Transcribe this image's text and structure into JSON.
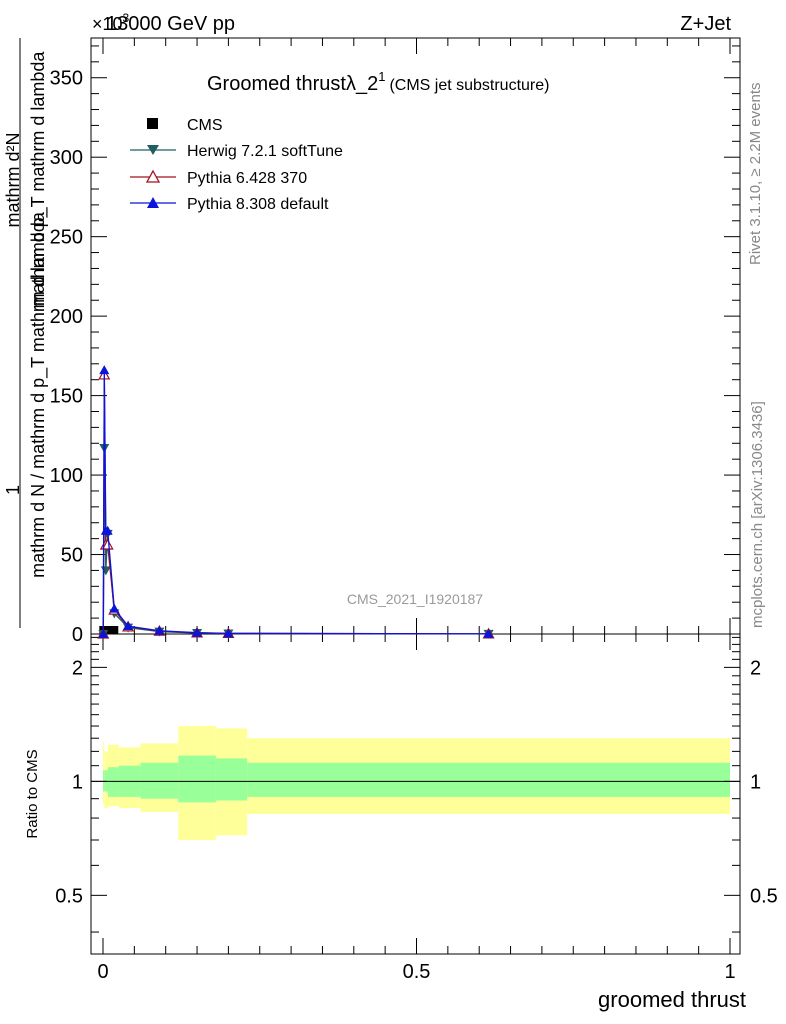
{
  "header": {
    "energy_label": "13000 GeV pp",
    "process_label": "Z+Jet",
    "exponent_label": "×10",
    "exponent_power": "3"
  },
  "side_labels": {
    "rivet": "Rivet 3.1.10, ≥ 2.2M events",
    "mcplots": "mcplots.cern.ch [arXiv:1306.3436]"
  },
  "watermark": "CMS_2021_I1920187",
  "colors": {
    "cms": "#000000",
    "herwig": "#1f5f5f",
    "pythia6": "#a0141e",
    "pythia8": "#0a14dc",
    "band_inner": "#99ff99",
    "band_outer": "#ffff99"
  },
  "chart_data": [
    {
      "type": "line",
      "title": "Groomed thrust",
      "title_symbol": "λ_2",
      "title_superscript": "1",
      "subtitle": "(CMS jet substructure)",
      "ylabel": "mathrm d N / mathrm d p_T mathrm d lambda   1 / mathrm d N / mathrm d p_T mathrm d lambda",
      "ylabel_lines": [
        "1",
        "mathrm d N / mathrm d p_T mathrm d lambda",
        "mathrm d²N",
        "mathrm d p_T mathrm d lambda"
      ],
      "xlim": [
        -0.01,
        1.0
      ],
      "ylim": [
        0,
        375
      ],
      "y_multiplier": "×10³",
      "y_ticks": [
        0,
        50,
        100,
        150,
        200,
        250,
        300,
        350
      ],
      "legend_position": "top-left",
      "series": [
        {
          "name": "CMS",
          "marker": "square",
          "x": [
            0.0005,
            0.002,
            0.0045,
            0.0075,
            0.012,
            0.018
          ],
          "y": [
            0,
            0,
            0,
            0,
            0,
            0
          ]
        },
        {
          "name": "Herwig 7.2.1 softTune",
          "marker": "triangle-down",
          "x": [
            0.0005,
            0.002,
            0.0045,
            0.0075,
            0.018,
            0.04,
            0.09,
            0.15,
            0.2,
            0.615
          ],
          "y": [
            0.0,
            117,
            40,
            63,
            13,
            4,
            1.5,
            0.6,
            0.3,
            0.05
          ]
        },
        {
          "name": "Pythia 6.428 370",
          "marker": "triangle-up-open",
          "x": [
            0.0005,
            0.002,
            0.0045,
            0.0075,
            0.018,
            0.04,
            0.09,
            0.15,
            0.2,
            0.615
          ],
          "y": [
            0.0,
            163,
            56,
            56,
            15,
            4.5,
            1.8,
            0.7,
            0.35,
            0.06
          ]
        },
        {
          "name": "Pythia 8.308 default",
          "marker": "triangle-up",
          "x": [
            0.0005,
            0.002,
            0.0045,
            0.0075,
            0.018,
            0.04,
            0.09,
            0.15,
            0.2,
            0.615
          ],
          "y": [
            0.0,
            166,
            65,
            65,
            16,
            5,
            2,
            0.8,
            0.4,
            0.06
          ]
        }
      ]
    },
    {
      "type": "area",
      "ylabel": "Ratio to CMS",
      "xlabel": "groomed thrust",
      "xlim": [
        -0.01,
        1.0
      ],
      "ylim": [
        0.35,
        2.45
      ],
      "y_scale": "log",
      "x_ticks": [
        0,
        0.5,
        1
      ],
      "x_tick_labels": [
        "0",
        "0.5",
        "1"
      ],
      "y_ticks": [
        0.5,
        1,
        2
      ],
      "y_tick_labels": [
        "0.5",
        "1",
        "2"
      ],
      "reference_line": 1,
      "bins": [
        {
          "lo": 0.0,
          "hi": 0.002,
          "inner": [
            0.94,
            1.07
          ],
          "outer": [
            0.87,
            1.27
          ]
        },
        {
          "lo": 0.002,
          "hi": 0.008,
          "inner": [
            0.94,
            1.07
          ],
          "outer": [
            0.85,
            1.2
          ]
        },
        {
          "lo": 0.008,
          "hi": 0.025,
          "inner": [
            0.91,
            1.09
          ],
          "outer": [
            0.86,
            1.25
          ]
        },
        {
          "lo": 0.025,
          "hi": 0.06,
          "inner": [
            0.91,
            1.1
          ],
          "outer": [
            0.85,
            1.23
          ]
        },
        {
          "lo": 0.06,
          "hi": 0.12,
          "inner": [
            0.9,
            1.12
          ],
          "outer": [
            0.83,
            1.26
          ]
        },
        {
          "lo": 0.12,
          "hi": 0.18,
          "inner": [
            0.88,
            1.17
          ],
          "outer": [
            0.7,
            1.4
          ]
        },
        {
          "lo": 0.18,
          "hi": 0.23,
          "inner": [
            0.89,
            1.15
          ],
          "outer": [
            0.72,
            1.38
          ]
        },
        {
          "lo": 0.23,
          "hi": 1.0,
          "inner": [
            0.91,
            1.12
          ],
          "outer": [
            0.82,
            1.3
          ]
        }
      ]
    }
  ]
}
